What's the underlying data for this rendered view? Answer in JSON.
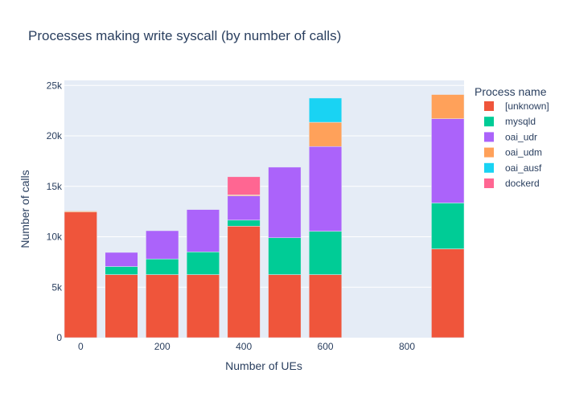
{
  "chart_data": {
    "type": "bar",
    "barmode": "stack",
    "title": "Processes making write syscall (by number of calls)",
    "xlabel": "Number of UEs",
    "ylabel": "Number of calls",
    "xlim": [
      -40,
      940
    ],
    "ylim": [
      0,
      25500
    ],
    "x_ticks": [
      0,
      200,
      400,
      600,
      800
    ],
    "x_tick_labels": [
      "0",
      "200",
      "400",
      "600",
      "800"
    ],
    "y_ticks": [
      0,
      5000,
      10000,
      15000,
      20000,
      25000
    ],
    "y_tick_labels": [
      "0",
      "5k",
      "10k",
      "15k",
      "20k",
      "25k"
    ],
    "grid": true,
    "legend_title": "Process name",
    "legend_position": "right",
    "bar_width": 80,
    "x": [
      0,
      100,
      200,
      300,
      400,
      500,
      600,
      900
    ],
    "series": [
      {
        "name": "[unknown]",
        "color": "#EF553B",
        "values": [
          12450,
          6250,
          6250,
          6250,
          11050,
          6250,
          6250,
          8800
        ]
      },
      {
        "name": "mysqld",
        "color": "#00CC96",
        "values": [
          0,
          800,
          1550,
          2250,
          600,
          3650,
          4300,
          4550
        ]
      },
      {
        "name": "oai_udr",
        "color": "#AB63FA",
        "values": [
          0,
          1400,
          2800,
          4200,
          2400,
          7000,
          8400,
          8350
        ]
      },
      {
        "name": "oai_udm",
        "color": "#FFA15A",
        "values": [
          100,
          0,
          0,
          0,
          100,
          0,
          2400,
          2400
        ]
      },
      {
        "name": "oai_ausf",
        "color": "#19D3F3",
        "values": [
          0,
          0,
          0,
          0,
          0,
          0,
          2400,
          0
        ]
      },
      {
        "name": "dockerd",
        "color": "#FF6692",
        "values": [
          0,
          0,
          0,
          0,
          1800,
          0,
          0,
          0
        ]
      }
    ],
    "plot_bg": "#E5ECF6",
    "text_color": "#2a3f5f"
  }
}
